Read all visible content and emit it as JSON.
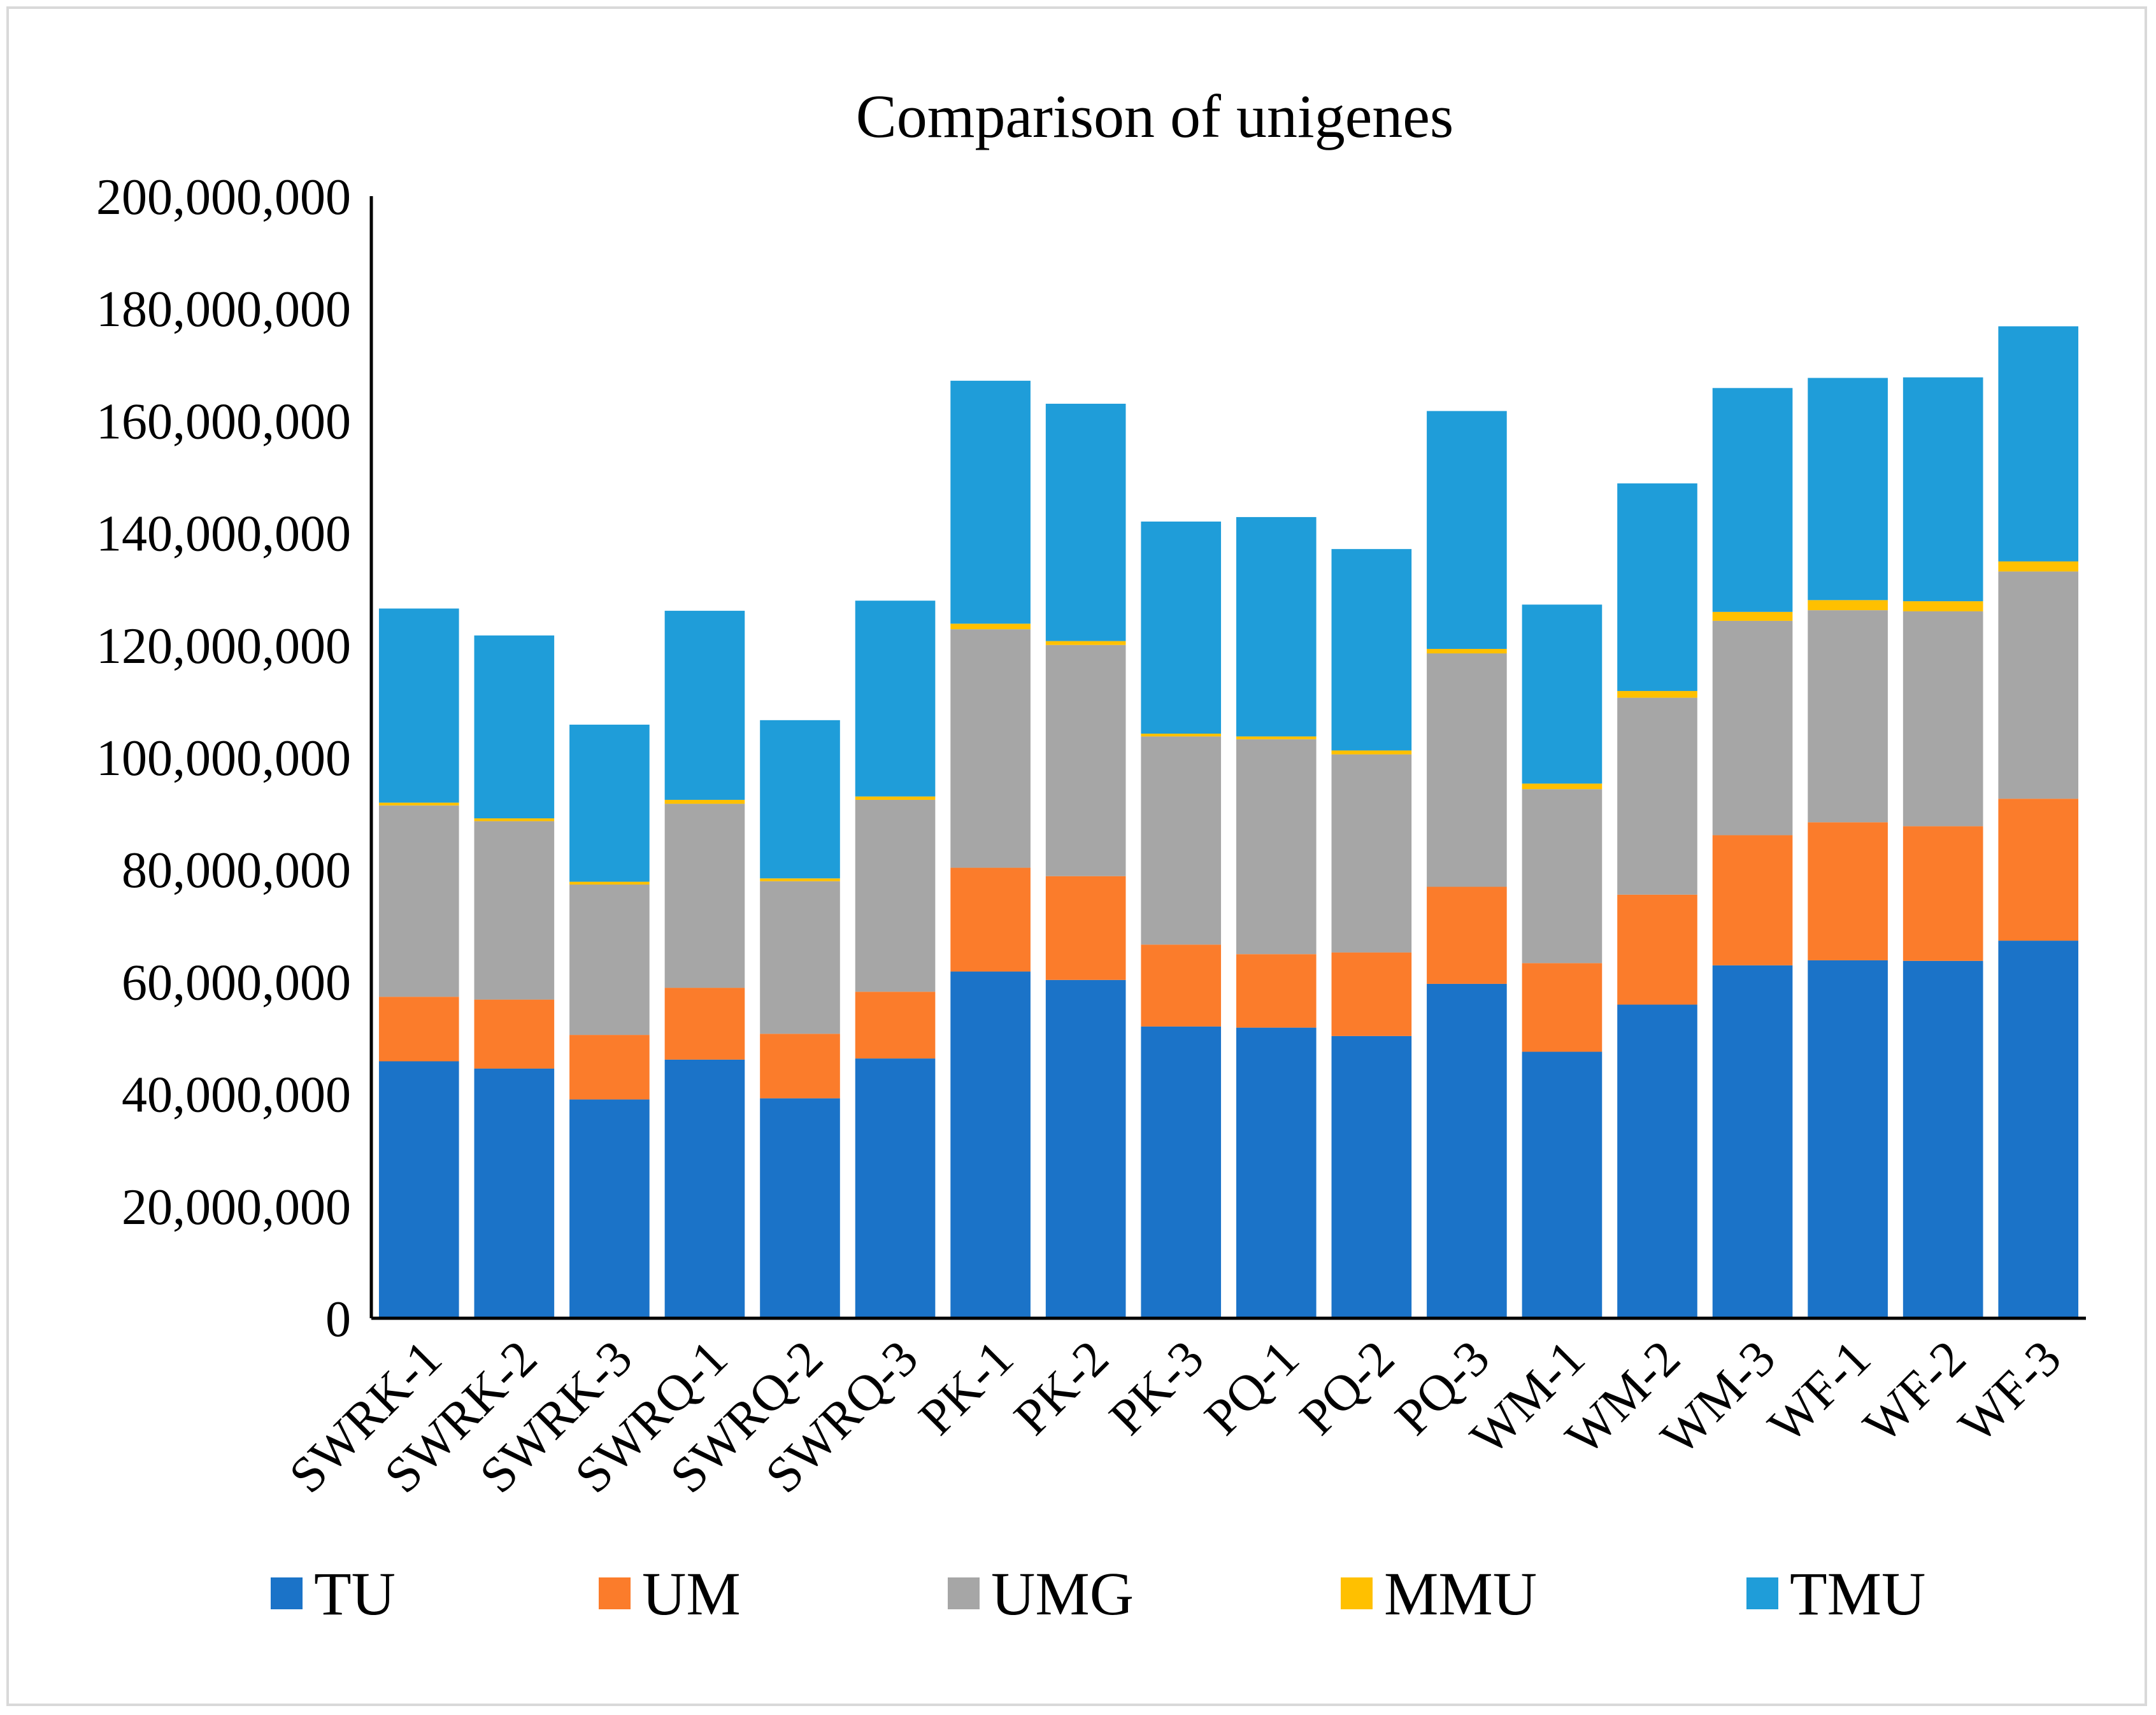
{
  "chart_data": {
    "type": "bar",
    "stacked": true,
    "title": "Comparison of unigenes",
    "xlabel": "",
    "ylabel": "",
    "ylim": [
      0,
      200000000
    ],
    "yticks": [
      0,
      20000000,
      40000000,
      60000000,
      80000000,
      100000000,
      120000000,
      140000000,
      160000000,
      180000000,
      200000000
    ],
    "ytick_labels": [
      "0",
      "20,000,000",
      "40,000,000",
      "60,000,000",
      "80,000,000",
      "100,000,000",
      "120,000,000",
      "140,000,000",
      "160,000,000",
      "180,000,000",
      "200,000,000"
    ],
    "grid": false,
    "legend_position": "bottom",
    "categories": [
      "SWRK-1",
      "SWRK-2",
      "SWRK-3",
      "SWRQ-1",
      "SWRQ-2",
      "SWRQ-3",
      "PK-1",
      "PK-2",
      "PK-3",
      "PQ-1",
      "PQ-2",
      "PQ-3",
      "WM-1",
      "WM-2",
      "WM-3",
      "WF-1",
      "WF-2",
      "WF-3"
    ],
    "series": [
      {
        "name": "TU",
        "color": "#1b73c8",
        "values": [
          45800000,
          44500000,
          39000000,
          46100000,
          39200000,
          46300000,
          61800000,
          60300000,
          52000000,
          51800000,
          50300000,
          59600000,
          47500000,
          55900000,
          62900000,
          63800000,
          63700000,
          67300000
        ]
      },
      {
        "name": "UM",
        "color": "#fb7c2b",
        "values": [
          11500000,
          12300000,
          11500000,
          12800000,
          11500000,
          11900000,
          18500000,
          18500000,
          14600000,
          13100000,
          14900000,
          17300000,
          15800000,
          19600000,
          23200000,
          24600000,
          24000000,
          25300000
        ]
      },
      {
        "name": "UMG",
        "color": "#a6a6a6",
        "values": [
          34100000,
          31800000,
          26800000,
          32800000,
          27200000,
          34200000,
          42500000,
          41200000,
          37100000,
          38300000,
          35300000,
          41600000,
          31000000,
          35100000,
          38200000,
          37800000,
          38300000,
          40500000
        ]
      },
      {
        "name": "MMU",
        "color": "#ffc000",
        "values": [
          500000,
          500000,
          500000,
          700000,
          500000,
          600000,
          1000000,
          700000,
          500000,
          500000,
          700000,
          800000,
          1000000,
          1200000,
          1600000,
          1800000,
          1800000,
          1800000
        ]
      },
      {
        "name": "TMU",
        "color": "#1f9dd9",
        "values": [
          34600000,
          32600000,
          28000000,
          33700000,
          28200000,
          34900000,
          43300000,
          42300000,
          37800000,
          39100000,
          35900000,
          42400000,
          31900000,
          37000000,
          39900000,
          39600000,
          39900000,
          41900000
        ]
      }
    ]
  }
}
